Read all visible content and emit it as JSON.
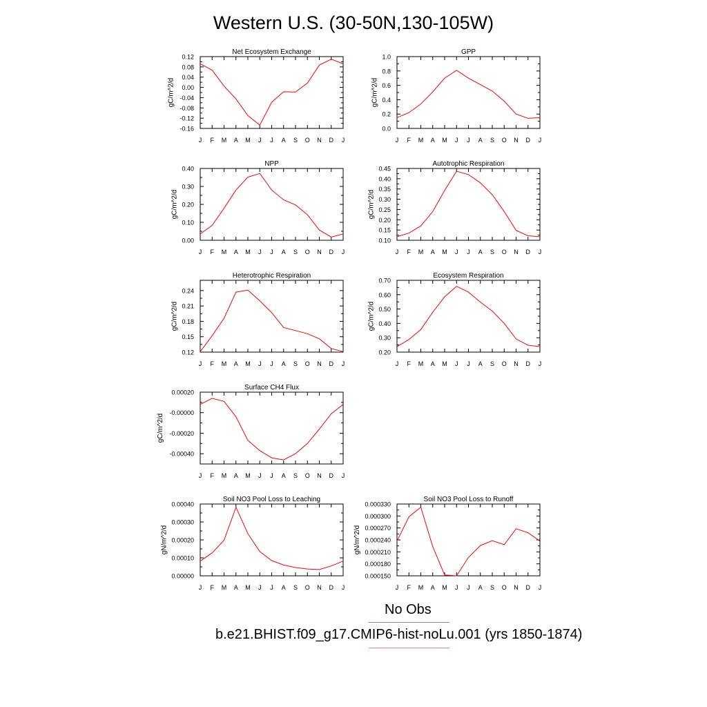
{
  "figure": {
    "title": "Western U.S. (30-50N,130-105W)",
    "legend": [
      {
        "label": "No Obs",
        "color": "#8080ff"
      },
      {
        "label": "b.e21.BHIST.f09_g17.CMIP6-hist-noLu.001 (yrs 1850-1874)",
        "color": "#ff8080"
      }
    ]
  },
  "chart_data": [
    {
      "type": "line",
      "title": "Net Ecosystem Exchange",
      "ylabel": "gC/m^2/d",
      "categories": [
        "J",
        "F",
        "M",
        "A",
        "M",
        "J",
        "J",
        "A",
        "S",
        "O",
        "N",
        "D",
        "J"
      ],
      "ylim": [
        -0.16,
        0.12
      ],
      "yticks": [
        0.12,
        0.08,
        0.04,
        0.0,
        -0.04,
        -0.08,
        -0.12,
        -0.16
      ],
      "ytick_labels": [
        "0.12",
        "0.08",
        "0.04",
        "0.00",
        "-0.04",
        "-0.08",
        "-0.12",
        "-0.16"
      ],
      "series": [
        {
          "color": "#ff0000",
          "values": [
            0.092,
            0.067,
            0.005,
            -0.045,
            -0.11,
            -0.147,
            -0.058,
            -0.017,
            -0.018,
            0.017,
            0.087,
            0.11,
            0.092
          ]
        }
      ]
    },
    {
      "type": "line",
      "title": "GPP",
      "ylabel": "gC/m^2/d",
      "categories": [
        "J",
        "F",
        "M",
        "A",
        "M",
        "J",
        "J",
        "A",
        "S",
        "O",
        "N",
        "D",
        "J"
      ],
      "ylim": [
        0.0,
        1.0
      ],
      "yticks": [
        1.0,
        0.8,
        0.6,
        0.4,
        0.2,
        0.0
      ],
      "ytick_labels": [
        "1.0",
        "0.8",
        "0.6",
        "0.4",
        "0.2",
        "0.0"
      ],
      "series": [
        {
          "color": "#ff0000",
          "values": [
            0.15,
            0.22,
            0.34,
            0.51,
            0.7,
            0.81,
            0.7,
            0.61,
            0.52,
            0.38,
            0.2,
            0.14,
            0.15
          ]
        }
      ]
    },
    {
      "type": "line",
      "title": "NPP",
      "ylabel": "gC/m^2/d",
      "categories": [
        "J",
        "F",
        "M",
        "A",
        "M",
        "J",
        "J",
        "A",
        "S",
        "O",
        "N",
        "D",
        "J"
      ],
      "ylim": [
        0.0,
        0.4
      ],
      "yticks": [
        0.4,
        0.3,
        0.2,
        0.1,
        0.0
      ],
      "ytick_labels": [
        "0.40",
        "0.30",
        "0.20",
        "0.10",
        "0.00"
      ],
      "series": [
        {
          "color": "#ff0000",
          "values": [
            0.035,
            0.083,
            0.178,
            0.28,
            0.352,
            0.372,
            0.28,
            0.225,
            0.197,
            0.142,
            0.057,
            0.018,
            0.035
          ]
        }
      ]
    },
    {
      "type": "line",
      "title": "Autotrophic Respiration",
      "ylabel": "gC/m^2/d",
      "categories": [
        "J",
        "F",
        "M",
        "A",
        "M",
        "J",
        "J",
        "A",
        "S",
        "O",
        "N",
        "D",
        "J"
      ],
      "ylim": [
        0.1,
        0.45
      ],
      "yticks": [
        0.45,
        0.4,
        0.35,
        0.3,
        0.25,
        0.2,
        0.15,
        0.1
      ],
      "ytick_labels": [
        "0.45",
        "0.40",
        "0.35",
        "0.30",
        "0.25",
        "0.20",
        "0.15",
        "0.10"
      ],
      "series": [
        {
          "color": "#ff0000",
          "values": [
            0.117,
            0.135,
            0.17,
            0.24,
            0.343,
            0.437,
            0.42,
            0.38,
            0.322,
            0.24,
            0.148,
            0.122,
            0.117
          ]
        }
      ]
    },
    {
      "type": "line",
      "title": "Heterotrophic Respiration",
      "ylabel": "gC/m^2/d",
      "categories": [
        "J",
        "F",
        "M",
        "A",
        "M",
        "J",
        "J",
        "A",
        "S",
        "O",
        "N",
        "D",
        "J"
      ],
      "ylim": [
        0.12,
        0.26
      ],
      "yticks": [
        0.24,
        0.21,
        0.18,
        0.15,
        0.12
      ],
      "ytick_labels": [
        "0.24",
        "0.21",
        "0.18",
        "0.15",
        "0.12"
      ],
      "series": [
        {
          "color": "#ff0000",
          "values": [
            0.121,
            0.152,
            0.186,
            0.237,
            0.241,
            0.22,
            0.197,
            0.168,
            0.162,
            0.156,
            0.146,
            0.127,
            0.121
          ]
        }
      ]
    },
    {
      "type": "line",
      "title": "Ecosystem Respiration",
      "ylabel": "gC/m^2/d",
      "categories": [
        "J",
        "F",
        "M",
        "A",
        "M",
        "J",
        "J",
        "A",
        "S",
        "O",
        "N",
        "D",
        "J"
      ],
      "ylim": [
        0.2,
        0.7
      ],
      "yticks": [
        0.7,
        0.6,
        0.5,
        0.4,
        0.3,
        0.2
      ],
      "ytick_labels": [
        "0.70",
        "0.60",
        "0.50",
        "0.40",
        "0.30",
        "0.20"
      ],
      "series": [
        {
          "color": "#ff0000",
          "values": [
            0.238,
            0.288,
            0.357,
            0.478,
            0.585,
            0.658,
            0.618,
            0.548,
            0.486,
            0.4,
            0.292,
            0.248,
            0.238
          ]
        }
      ]
    },
    {
      "type": "line",
      "title": "Surface CH4 Flux",
      "ylabel": "gC/m^2/d",
      "categories": [
        "J",
        "F",
        "M",
        "A",
        "M",
        "J",
        "J",
        "A",
        "S",
        "O",
        "N",
        "D",
        "J"
      ],
      "ylim": [
        -0.0005,
        0.0002
      ],
      "yticks": [
        0.0002,
        0.0,
        -0.0002,
        -0.0004
      ],
      "ytick_labels": [
        "0.00020",
        "-0.00000",
        "-0.00020",
        "-0.00040"
      ],
      "series": [
        {
          "color": "#ff0000",
          "values": [
            8e-05,
            0.00014,
            0.00011,
            -4e-05,
            -0.00027,
            -0.00037,
            -0.00044,
            -0.00046,
            -0.0004,
            -0.0003,
            -0.00016,
            -1e-05,
            8e-05
          ]
        }
      ]
    },
    {
      "type": "line",
      "title": "Soil NO3 Pool Loss to Leaching",
      "ylabel": "gN/m^2/d",
      "categories": [
        "J",
        "F",
        "M",
        "A",
        "M",
        "J",
        "J",
        "A",
        "S",
        "O",
        "N",
        "D",
        "J"
      ],
      "ylim": [
        0.0,
        0.0004
      ],
      "yticks": [
        0.0004,
        0.0003,
        0.0002,
        0.0001,
        0.0
      ],
      "ytick_labels": [
        "0.00040",
        "0.00030",
        "0.00020",
        "0.00010",
        "0.00000"
      ],
      "series": [
        {
          "color": "#ff0000",
          "values": [
            8.2e-05,
            0.000128,
            0.000198,
            0.000382,
            0.000235,
            0.000135,
            8.5e-05,
            6e-05,
            4.6e-05,
            3.8e-05,
            3.5e-05,
            5.5e-05,
            8.2e-05
          ]
        }
      ]
    },
    {
      "type": "line",
      "title": "Soil NO3 Pool Loss to Runoff",
      "ylabel": "gN/m^2/d",
      "categories": [
        "J",
        "F",
        "M",
        "A",
        "M",
        "J",
        "J",
        "A",
        "S",
        "O",
        "N",
        "D",
        "J"
      ],
      "ylim": [
        0.00015,
        0.00033
      ],
      "yticks": [
        0.00033,
        0.0003,
        0.00027,
        0.00024,
        0.00021,
        0.00018,
        0.00015
      ],
      "ytick_labels": [
        "0.000330",
        "0.000300",
        "0.000270",
        "0.000240",
        "0.000210",
        "0.000180",
        "0.000150"
      ],
      "series": [
        {
          "color": "#ff0000",
          "values": [
            0.000237,
            0.000298,
            0.000322,
            0.000223,
            0.000152,
            0.00015,
            0.000196,
            0.000226,
            0.000238,
            0.000228,
            0.000268,
            0.000258,
            0.000237
          ]
        }
      ]
    }
  ]
}
